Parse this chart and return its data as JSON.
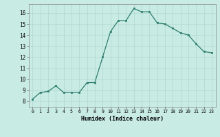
{
  "x": [
    0,
    1,
    2,
    3,
    4,
    5,
    6,
    7,
    8,
    9,
    10,
    11,
    12,
    13,
    14,
    15,
    16,
    17,
    18,
    19,
    20,
    21,
    22,
    23
  ],
  "y": [
    8.2,
    8.8,
    8.9,
    9.4,
    8.8,
    8.8,
    8.8,
    9.7,
    9.7,
    12.0,
    14.3,
    15.3,
    15.3,
    16.4,
    16.1,
    16.1,
    15.1,
    15.0,
    14.6,
    14.2,
    14.0,
    13.2,
    12.5,
    12.4
  ],
  "line_color": "#2e7d6e",
  "bg_color": "#c8ebe4",
  "grid_color": "#b0d8d0",
  "xlabel": "Humidex (Indice chaleur)",
  "ylabel_ticks": [
    8,
    9,
    10,
    11,
    12,
    13,
    14,
    15,
    16
  ],
  "xtick_labels": [
    "0",
    "1",
    "2",
    "3",
    "4",
    "5",
    "6",
    "7",
    "8",
    "9",
    "10",
    "11",
    "12",
    "13",
    "14",
    "15",
    "16",
    "17",
    "18",
    "19",
    "20",
    "21",
    "22",
    "23"
  ],
  "ylim": [
    7.5,
    16.8
  ],
  "xlim": [
    -0.5,
    23.5
  ]
}
